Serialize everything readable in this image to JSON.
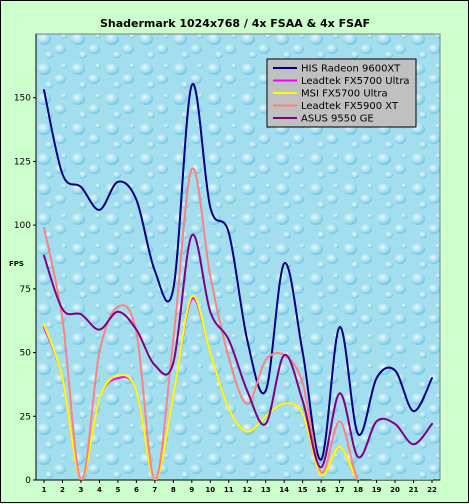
{
  "chart_data": {
    "type": "line",
    "title": "Shadermark 1024x768 / 4x FSAA & 4x FSAF",
    "xlabel": "",
    "ylabel": "FPS",
    "ylim": [
      0,
      175
    ],
    "yticks": [
      0,
      25,
      50,
      75,
      100,
      125,
      150
    ],
    "x": [
      1,
      2,
      3,
      4,
      5,
      6,
      7,
      8,
      9,
      10,
      11,
      12,
      13,
      14,
      15,
      16,
      17,
      18,
      19,
      20,
      21,
      22
    ],
    "grid": false,
    "legend_position": "top-right",
    "series": [
      {
        "name": "HIS Radeon 9600XT",
        "color": "#000080",
        "values": [
          153,
          120,
          115,
          106,
          117,
          110,
          82,
          75,
          155,
          107,
          97,
          55,
          35,
          85,
          50,
          8,
          60,
          18,
          40,
          43,
          27,
          40
        ]
      },
      {
        "name": "Leadtek FX5700 Ultra",
        "color": "#ff00ff",
        "values": [
          60,
          40,
          0,
          32,
          40,
          35,
          0,
          33,
          71,
          50,
          28,
          19,
          25,
          30,
          26,
          2,
          13,
          0,
          0,
          0,
          0,
          0
        ]
      },
      {
        "name": "MSI FX5700 Ultra",
        "color": "#ffff00",
        "values": [
          61,
          40,
          0,
          32,
          41,
          35,
          0,
          33,
          72,
          50,
          28,
          19,
          25,
          30,
          26,
          2,
          13,
          0,
          0,
          0,
          0,
          0
        ]
      },
      {
        "name": "Leadtek FX5900 XT",
        "color": "#ff8080",
        "values": [
          99,
          63,
          0,
          50,
          68,
          58,
          0,
          55,
          122,
          80,
          48,
          30,
          47,
          49,
          38,
          3,
          23,
          0,
          0,
          0,
          0,
          0
        ]
      },
      {
        "name": "ASUS 9550 GE",
        "color": "#800080",
        "values": [
          88,
          67,
          65,
          59,
          66,
          59,
          45,
          46,
          96,
          66,
          55,
          35,
          22,
          49,
          31,
          5,
          34,
          9,
          23,
          22,
          14,
          22
        ]
      }
    ]
  }
}
